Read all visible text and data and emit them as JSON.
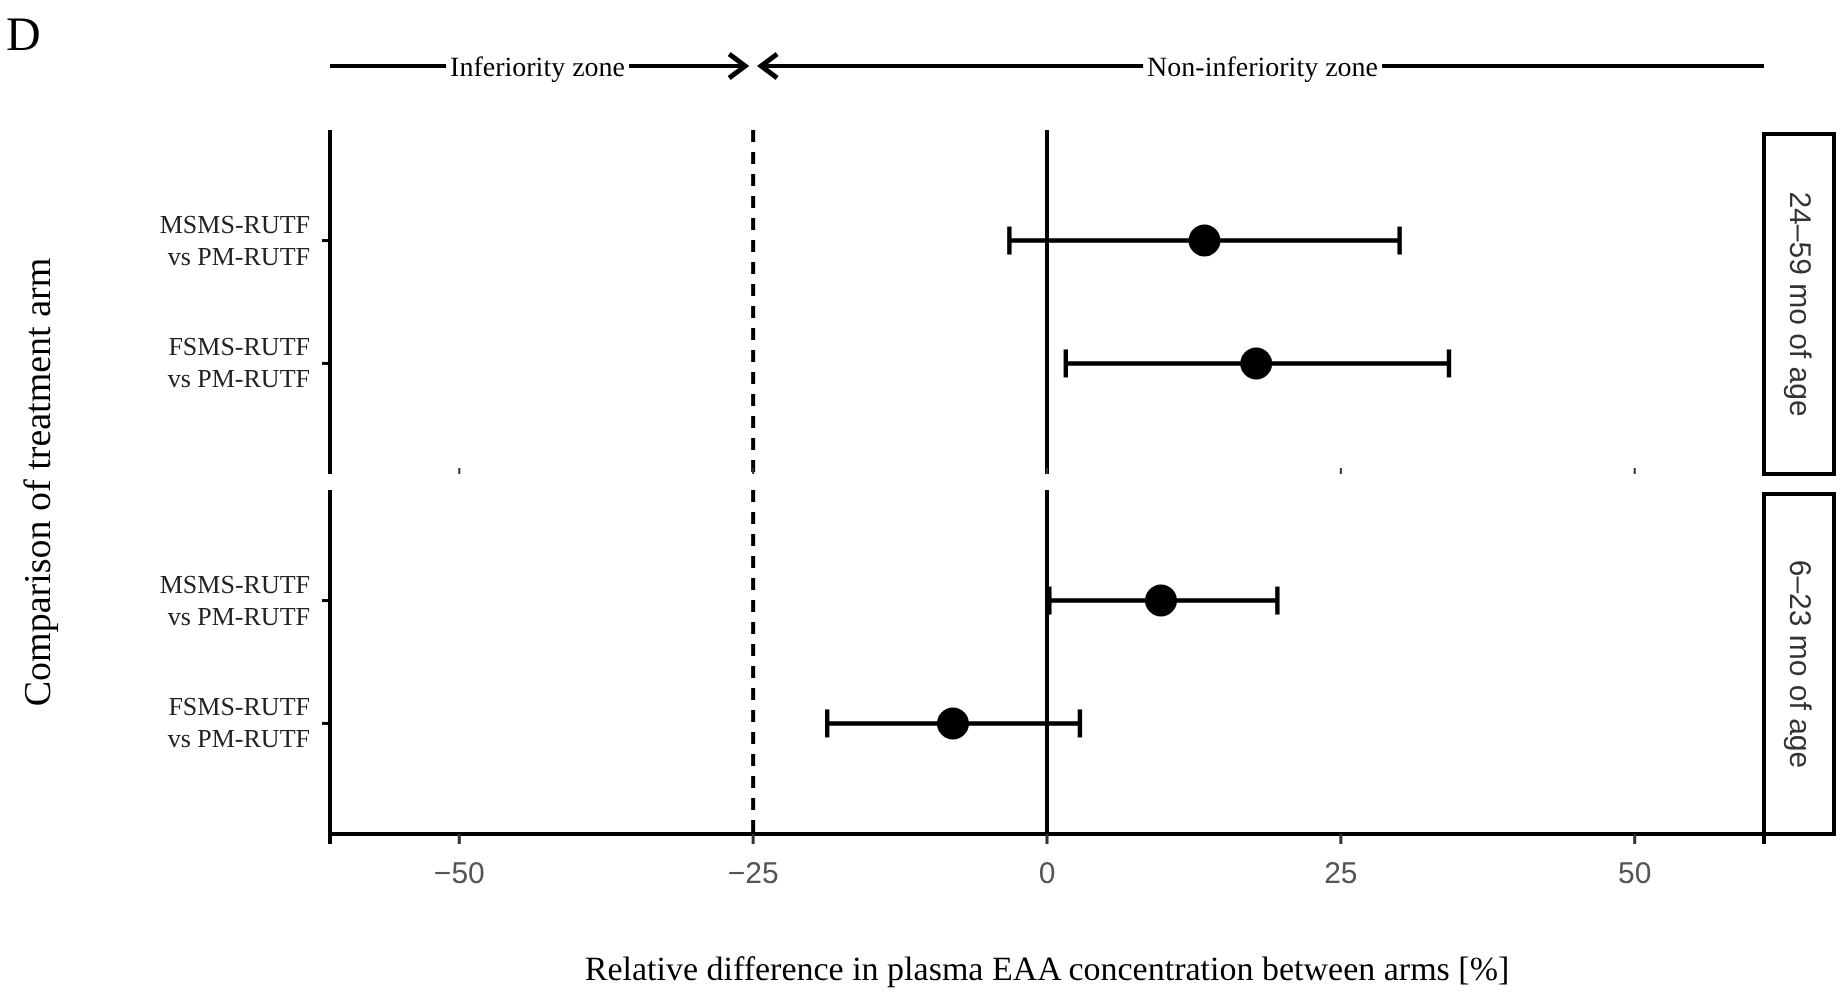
{
  "chart_data": [
    {
      "type": "scatter",
      "y2label": "24–59 mo of age",
      "ylabel": "Comparison of treatment arm",
      "annotations": [
        "D",
        "Inferiority zone",
        "Non-inferiority zone"
      ],
      "orientation": "horizontal",
      "categories": [
        "MSMS-RUTF vs PM-RUTF",
        "FSMS-RUTF vs PM-RUTF"
      ],
      "series": [
        {
          "color": "#000000",
          "values": [
            13.4,
            17.8
          ],
          "errors": [
            [
              -3.2,
              30.0
            ],
            [
              1.6,
              34.2
            ]
          ]
        }
      ],
      "xticks": [
        -50,
        -25,
        0,
        25,
        50
      ],
      "tick_labels": "y",
      "marker": "circle",
      "ref_lines": [
        {
          "axis": "x",
          "value": -25,
          "line_style": "dashed"
        },
        {
          "axis": "x",
          "value": 0,
          "line_style": "solid"
        }
      ]
    },
    {
      "type": "scatter",
      "y2label": "6–23 mo of age",
      "xlabel": "Relative difference in plasma EAA concentration between arms [%]",
      "orientation": "horizontal",
      "categories": [
        "MSMS-RUTF vs PM-RUTF",
        "FSMS-RUTF vs PM-RUTF"
      ],
      "series": [
        {
          "color": "#000000",
          "values": [
            9.7,
            -8.0
          ],
          "errors": [
            [
              0.2,
              19.6
            ],
            [
              -18.7,
              2.8
            ]
          ]
        }
      ],
      "xlim": [
        -61,
        61
      ],
      "xticks": [
        -50,
        -25,
        0,
        25,
        50
      ],
      "marker": "circle",
      "ref_lines": [
        {
          "axis": "x",
          "value": -25,
          "line_style": "dashed"
        },
        {
          "axis": "x",
          "value": 0,
          "line_style": "solid"
        }
      ]
    }
  ]
}
